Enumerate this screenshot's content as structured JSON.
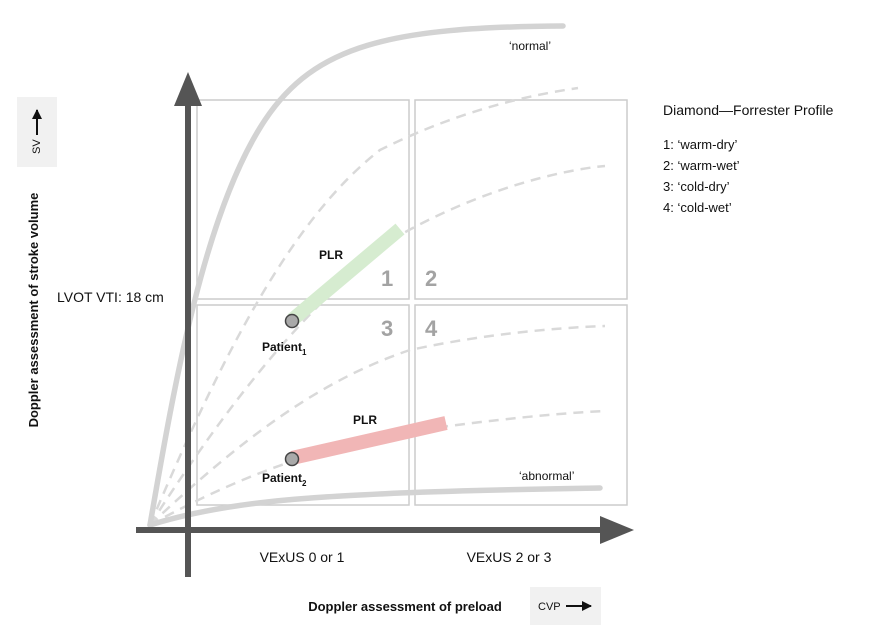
{
  "y_axis": {
    "label": "Doppler assessment of stroke volume",
    "tag": "SV",
    "marker_label": "LVOT VTI: 18 cm"
  },
  "x_axis": {
    "label": "Doppler assessment of preload",
    "tag": "CVP",
    "zone_left": "VExUS 0 or 1",
    "zone_right": "VExUS 2 or 3"
  },
  "curves": {
    "normal_label": "‘normal’",
    "abnormal_label": "‘abnormal’"
  },
  "quadrants": {
    "q1": "1",
    "q2": "2",
    "q3": "3",
    "q4": "4"
  },
  "legend": {
    "title": "Diamond—Forrester Profile",
    "items": [
      "1: ‘warm-dry’",
      "2: ‘warm-wet’",
      "3: ‘cold-dry’",
      "4: ‘cold-wet’"
    ]
  },
  "patients": [
    {
      "name": "Patient",
      "subscript": "1",
      "maneuver": "PLR",
      "response_color": "#cfe8c8"
    },
    {
      "name": "Patient",
      "subscript": "2",
      "maneuver": "PLR",
      "response_color": "#f0b4b4"
    }
  ],
  "colors": {
    "axis": "#555555",
    "curve": "#d3d3d3",
    "grid": "#cccccc",
    "point_fill": "#a9a9a9",
    "point_stroke": "#444444"
  }
}
